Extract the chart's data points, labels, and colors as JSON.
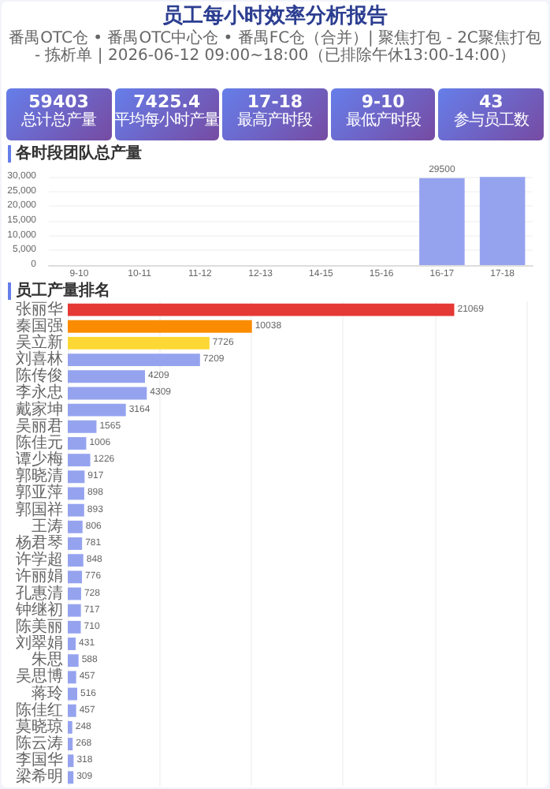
{
  "chart_data": [
    {
      "type": "other",
      "title": "员工每小时效率分析报告",
      "subtitle": "番禺OTC仓 • 番禺OTC中心仓 • 番禺FC仓（合并）| 聚焦打包 - 2C聚焦打包 - 拣析单 | 2026-06-12 09:00~18:00（已排除午休13:00-14:00）",
      "annotations": [
        "59403",
        "总计总产量",
        "7425.4",
        "平均每小时产量",
        "17-18",
        "最高产时段",
        "9-10",
        "最低产时段",
        "43",
        "参与员工数"
      ]
    },
    {
      "type": "bar",
      "title": "各时段团队总产量",
      "categories": [
        "9-10",
        "10-11",
        "11-12",
        "12-13",
        "14-15",
        "15-16",
        "16-17",
        "17-18"
      ],
      "values": [
        0,
        0,
        0,
        0,
        0,
        0,
        29500,
        29900
      ],
      "value_labels": [
        null,
        null,
        null,
        null,
        null,
        null,
        "29500",
        null
      ],
      "color": "#95a3ef",
      "ylim": [
        0,
        30000
      ],
      "yticks": [
        0,
        {
          "value": 5000,
          "label": "5,000"
        },
        {
          "value": 10000,
          "label": "10,000"
        },
        {
          "value": 15000,
          "label": "15,000"
        },
        {
          "value": 20000,
          "label": "20,000"
        },
        {
          "value": 25000,
          "label": "25,000"
        },
        {
          "value": 30000,
          "label": "30,000"
        }
      ],
      "grid": "y"
    },
    {
      "type": "bar",
      "title": "员工产量排名",
      "orientation": "horizontal",
      "categories": [
        "张丽华",
        "秦国强",
        "吴立新",
        "刘喜林",
        "陈传俊",
        "李永忠",
        "戴家坤",
        "吴丽君",
        "陈佳元",
        "谭少梅",
        "郭晓清",
        "郭亚萍",
        "郭国祥",
        "王涛",
        "杨君琴",
        "许学超",
        "许丽娟",
        "孔惠清",
        "钟继初",
        "陈美丽",
        "刘翠娟",
        "朱思",
        "吴思博",
        "蒋玲",
        "陈佳红",
        "莫晓琼",
        "陈云涛",
        "李国华",
        "梁希明"
      ],
      "values": [
        21069,
        10038,
        7726,
        7209,
        4209,
        4309,
        3164,
        1565,
        1006,
        1226,
        917,
        898,
        893,
        806,
        781,
        848,
        776,
        728,
        717,
        710,
        431,
        588,
        457,
        516,
        457,
        248,
        268,
        318,
        309
      ],
      "colors": [
        "#e53935",
        "#fb8c00",
        "#fdd835",
        "#95a3ef",
        "#95a3ef",
        "#95a3ef",
        "#95a3ef",
        "#95a3ef",
        "#95a3ef",
        "#95a3ef",
        "#95a3ef",
        "#95a3ef",
        "#95a3ef",
        "#95a3ef",
        "#95a3ef",
        "#95a3ef",
        "#95a3ef",
        "#95a3ef",
        "#95a3ef",
        "#95a3ef",
        "#95a3ef",
        "#95a3ef",
        "#95a3ef",
        "#95a3ef",
        "#95a3ef",
        "#95a3ef",
        "#95a3ef",
        "#95a3ef",
        "#95a3ef"
      ],
      "xlim": [
        0,
        25000
      ],
      "xticks": [
        {
          "value": 0,
          "label": null
        },
        {
          "value": 5000,
          "label": null
        },
        {
          "value": 10000,
          "label": null
        },
        {
          "value": 15000,
          "label": null
        },
        {
          "value": 20000,
          "label": null
        },
        {
          "value": 25000,
          "label": null
        }
      ],
      "tick_labels": "y",
      "grid": "x",
      "data_labels": true
    }
  ]
}
